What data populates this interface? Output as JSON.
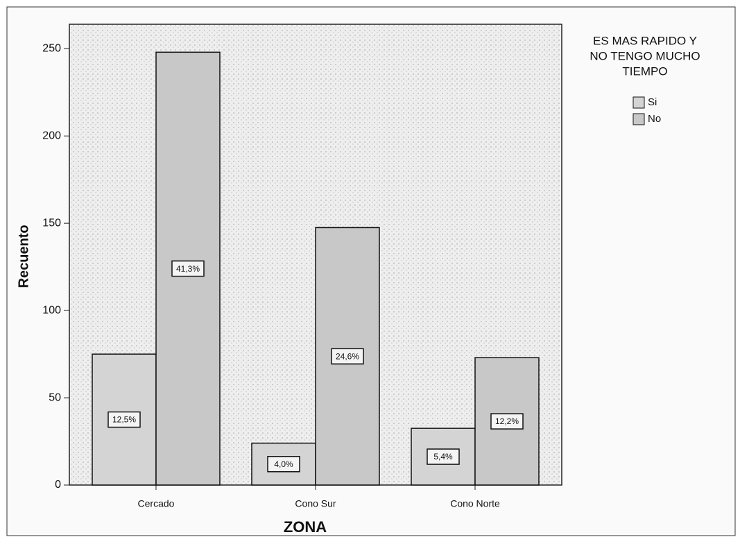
{
  "chart_data": {
    "type": "bar",
    "x_label": "ZONA",
    "y_label": "Recuento",
    "legend_title": [
      "ES MAS RAPIDO Y",
      "NO TENGO MUCHO",
      "TIEMPO"
    ],
    "categories": [
      "Cercado",
      "Cono Sur",
      "Cono Norte"
    ],
    "series": [
      {
        "name": "Si",
        "color": "#d4d4d4",
        "values": [
          75,
          24,
          32.5
        ],
        "value_labels": [
          "12,5%",
          "4,0%",
          "5,4%"
        ]
      },
      {
        "name": "No",
        "color": "#c8c8c8",
        "values": [
          248,
          147.5,
          73
        ],
        "value_labels": [
          "41,3%",
          "24,6%",
          "12,2%"
        ]
      }
    ],
    "ylim": [
      0,
      264
    ],
    "yticks": [
      0,
      50,
      100,
      150,
      200,
      250
    ]
  }
}
